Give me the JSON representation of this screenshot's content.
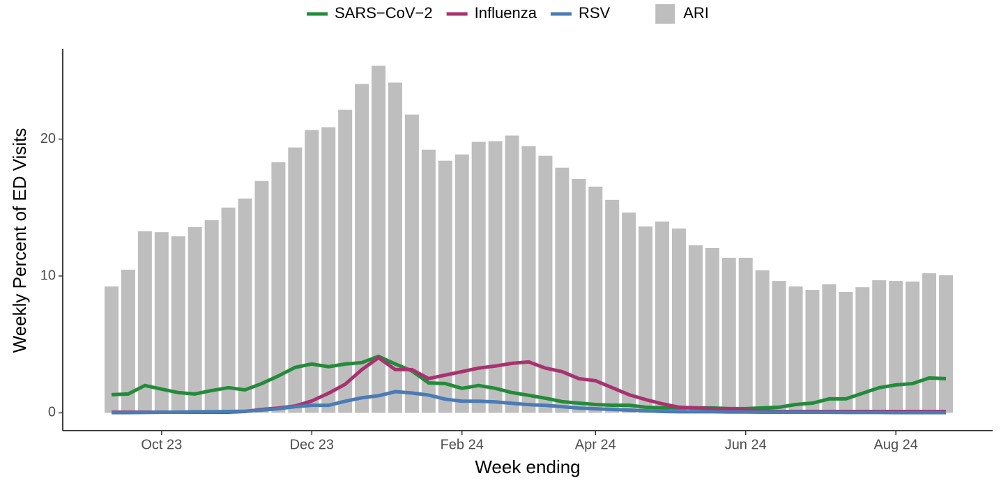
{
  "chart_data": {
    "type": "bar-line",
    "x_label": "Week ending",
    "y_label": "Weekly Percent of ED Visits",
    "categories": [
      null,
      null,
      null,
      "Oct 23",
      null,
      null,
      null,
      null,
      null,
      null,
      null,
      null,
      "Dec 23",
      null,
      null,
      null,
      null,
      null,
      null,
      null,
      null,
      "Feb 24",
      null,
      null,
      null,
      null,
      null,
      null,
      null,
      "Apr 24",
      null,
      null,
      null,
      null,
      null,
      null,
      null,
      null,
      "Jun 24",
      null,
      null,
      null,
      null,
      null,
      null,
      null,
      null,
      "Aug 24",
      null,
      null,
      null
    ],
    "series": [
      {
        "name": "SARS−CoV−2",
        "type": "line",
        "color": "#238b3a",
        "values": [
          1.33,
          1.38,
          2.0,
          1.73,
          1.48,
          1.38,
          1.63,
          1.84,
          1.68,
          2.14,
          2.7,
          3.32,
          3.57,
          3.37,
          3.57,
          3.67,
          4.13,
          3.57,
          3.06,
          2.19,
          2.14,
          1.79,
          2.0,
          1.79,
          1.48,
          1.28,
          1.07,
          0.82,
          0.71,
          0.61,
          0.56,
          0.56,
          0.41,
          0.36,
          0.36,
          0.36,
          0.36,
          0.31,
          0.31,
          0.36,
          0.41,
          0.61,
          0.71,
          1.02,
          1.02,
          1.43,
          1.84,
          2.04,
          2.14,
          2.55,
          2.5
        ]
      },
      {
        "name": "Influenza",
        "type": "line",
        "color": "#a8326e",
        "values": [
          0.05,
          0.05,
          0.05,
          0.05,
          0.05,
          0.05,
          0.05,
          0.05,
          0.1,
          0.25,
          0.35,
          0.5,
          0.87,
          1.43,
          2.09,
          3.16,
          4.03,
          3.16,
          3.16,
          2.5,
          2.76,
          3.01,
          3.27,
          3.42,
          3.62,
          3.72,
          3.27,
          3.01,
          2.5,
          2.35,
          1.84,
          1.33,
          0.97,
          0.66,
          0.41,
          0.36,
          0.31,
          0.26,
          0.2,
          0.15,
          0.1,
          0.1,
          0.1,
          0.1,
          0.1,
          0.1,
          0.1,
          0.1,
          0.1,
          0.1,
          0.1
        ]
      },
      {
        "name": "RSV",
        "type": "line",
        "color": "#4a7bb4",
        "values": [
          0.02,
          0.02,
          0.03,
          0.04,
          0.05,
          0.08,
          0.08,
          0.1,
          0.12,
          0.2,
          0.3,
          0.45,
          0.55,
          0.55,
          0.85,
          1.1,
          1.25,
          1.55,
          1.45,
          1.3,
          1.0,
          0.85,
          0.85,
          0.8,
          0.7,
          0.6,
          0.55,
          0.45,
          0.35,
          0.3,
          0.25,
          0.2,
          0.15,
          0.1,
          0.08,
          0.08,
          0.08,
          0.06,
          0.06,
          0.05,
          0.05,
          0.05,
          0.04,
          0.04,
          0.03,
          0.03,
          0.03,
          0.02,
          0.02,
          0.02,
          0.02
        ]
      },
      {
        "name": "ARI",
        "type": "bar",
        "color": "#bebebe",
        "values": [
          9.23,
          10.46,
          13.27,
          13.2,
          12.9,
          13.57,
          14.08,
          15.0,
          15.66,
          16.94,
          18.32,
          19.39,
          20.66,
          20.87,
          22.14,
          24.03,
          25.36,
          24.13,
          21.79,
          19.23,
          18.42,
          18.88,
          19.8,
          19.85,
          20.26,
          19.49,
          18.78,
          17.91,
          17.09,
          16.53,
          15.56,
          14.64,
          13.62,
          13.98,
          13.47,
          12.24,
          12.04,
          11.33,
          11.33,
          10.41,
          9.64,
          9.23,
          8.98,
          9.39,
          8.83,
          9.18,
          9.69,
          9.64,
          9.59,
          10.2,
          10.05
        ]
      }
    ],
    "ylim": [
      -1.3,
      26.6
    ],
    "yticks": [
      0,
      10,
      20
    ],
    "legend": "top"
  }
}
